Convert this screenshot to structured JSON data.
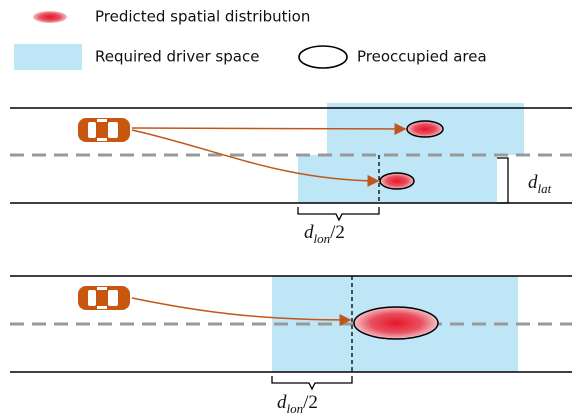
{
  "legend": {
    "predicted": "Predicted spatial distribution",
    "required": "Required driver space",
    "preoccupied": "Preoccupied area"
  },
  "labels": {
    "d_lat": {
      "symbol": "d",
      "subscript": "lat"
    },
    "d_lon_half_top": {
      "symbol": "d",
      "subscript": "lon",
      "suffix": "/2"
    },
    "d_lon_half_bottom": {
      "symbol": "d",
      "subscript": "lon",
      "suffix": "/2"
    }
  }
}
